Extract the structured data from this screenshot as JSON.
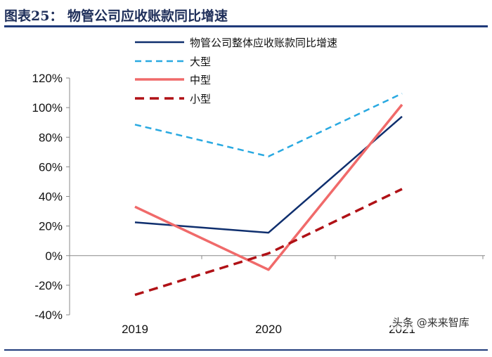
{
  "header": {
    "title": "图表25：   物管公司应收账款同比增速"
  },
  "watermark": {
    "text": "头条 @来来智库"
  },
  "colors": {
    "overall": "#0f2f6e",
    "large": "#29a9e1",
    "medium": "#f06a6a",
    "small": "#b01116",
    "axis": "#888888",
    "title_rule": "#1f3a7a"
  },
  "chart_data": {
    "type": "line",
    "title": "物管公司应收账款同比增速",
    "categories": [
      "2019",
      "2020",
      "2021"
    ],
    "ylim": [
      -40,
      120
    ],
    "yticks": [
      -40,
      -20,
      0,
      20,
      40,
      60,
      80,
      100,
      120
    ],
    "ytick_labels": [
      "-40%",
      "-20%",
      "0%",
      "20%",
      "40%",
      "60%",
      "80%",
      "100%",
      "120%"
    ],
    "grid": false,
    "legend_position": "top-center",
    "series": [
      {
        "name": "物管公司整体应收账款同比增速",
        "key": "overall",
        "style": "solid",
        "values": [
          22.5,
          15.5,
          94
        ]
      },
      {
        "name": "大型",
        "key": "large",
        "style": "dashed",
        "values": [
          88.5,
          67,
          109.5
        ]
      },
      {
        "name": "中型",
        "key": "medium",
        "style": "solid",
        "values": [
          33,
          -9.5,
          102
        ]
      },
      {
        "name": "小型",
        "key": "small",
        "style": "dashed",
        "values": [
          -26.5,
          1.5,
          45
        ]
      }
    ]
  }
}
